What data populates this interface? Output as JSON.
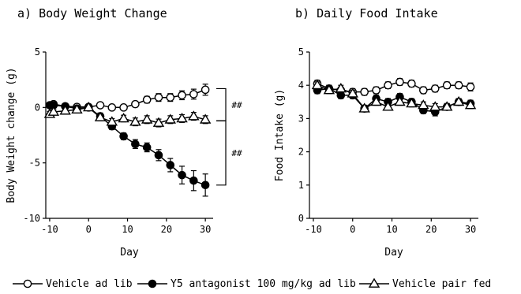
{
  "chart_data": [
    {
      "type": "line",
      "title": "a) Body Weight Change",
      "xlabel": "Day",
      "ylabel": "Body Weight change (g)",
      "xlim": [
        -11,
        32
      ],
      "ylim": [
        -10,
        5
      ],
      "xticks": [
        -10,
        0,
        10,
        20,
        30
      ],
      "yticks": [
        -10,
        -5,
        0,
        5
      ],
      "grid": false,
      "series": [
        {
          "name": "Vehicle ad lib",
          "marker": "open-circle",
          "points": [
            [
              -9,
              0.3
            ],
            [
              -6,
              0.1
            ],
            [
              -3,
              0.05
            ],
            [
              0,
              0.05
            ],
            [
              3,
              0.2
            ],
            [
              6,
              0.0
            ],
            [
              9,
              0.0
            ],
            [
              12,
              0.3
            ],
            [
              15,
              0.7
            ],
            [
              18,
              0.9
            ],
            [
              21,
              0.9
            ],
            [
              24,
              1.1
            ],
            [
              27,
              1.2
            ],
            [
              30,
              1.6
            ]
          ],
          "errors": [
            0.2,
            0.15,
            0.15,
            0.15,
            0.2,
            0.2,
            0.2,
            0.25,
            0.3,
            0.35,
            0.35,
            0.4,
            0.45,
            0.5
          ]
        },
        {
          "name": "Y5 antagonist 100 mg/kg ad lib",
          "marker": "filled-circle",
          "points": [
            [
              -10,
              0.2
            ],
            [
              -9,
              0.2
            ],
            [
              -6,
              0.1
            ],
            [
              -3,
              -0.1
            ],
            [
              0,
              0.0
            ],
            [
              3,
              -0.8
            ],
            [
              6,
              -1.7
            ],
            [
              9,
              -2.6
            ],
            [
              12,
              -3.3
            ],
            [
              15,
              -3.6
            ],
            [
              18,
              -4.3
            ],
            [
              21,
              -5.2
            ],
            [
              24,
              -6.1
            ],
            [
              27,
              -6.6
            ],
            [
              30,
              -7.0
            ]
          ],
          "errors": [
            0.2,
            0.2,
            0.2,
            0.2,
            0.2,
            0.3,
            0.3,
            0.3,
            0.4,
            0.4,
            0.5,
            0.6,
            0.8,
            0.9,
            1.0
          ]
        },
        {
          "name": "Vehicle pair fed",
          "marker": "open-triangle",
          "points": [
            [
              -10,
              -0.6
            ],
            [
              -9,
              -0.4
            ],
            [
              -6,
              -0.3
            ],
            [
              -3,
              -0.2
            ],
            [
              0,
              0.0
            ],
            [
              3,
              -0.9
            ],
            [
              6,
              -1.3
            ],
            [
              9,
              -1.0
            ],
            [
              12,
              -1.3
            ],
            [
              15,
              -1.1
            ],
            [
              18,
              -1.4
            ],
            [
              21,
              -1.1
            ],
            [
              24,
              -1.0
            ],
            [
              27,
              -0.8
            ],
            [
              30,
              -1.1
            ]
          ],
          "errors": [
            0.25,
            0.2,
            0.2,
            0.2,
            0.15,
            0.3,
            0.3,
            0.3,
            0.35,
            0.35,
            0.35,
            0.35,
            0.35,
            0.35,
            0.35
          ]
        }
      ],
      "annotations": [
        {
          "text": "##",
          "between": [
            1.7,
            -1.2
          ]
        },
        {
          "text": "##",
          "between": [
            -1.2,
            -7.0
          ]
        }
      ]
    },
    {
      "type": "line",
      "title": "b) Daily Food Intake",
      "xlabel": "Day",
      "ylabel": "Food Intake (g)",
      "xlim": [
        -11,
        32
      ],
      "ylim": [
        0,
        5
      ],
      "xticks": [
        -10,
        0,
        10,
        20,
        30
      ],
      "yticks": [
        0,
        1,
        2,
        3,
        4,
        5
      ],
      "grid": false,
      "series": [
        {
          "name": "Vehicle ad lib",
          "marker": "open-circle",
          "points": [
            [
              -9,
              4.05
            ],
            [
              -6,
              3.9
            ],
            [
              -3,
              3.85
            ],
            [
              0,
              3.8
            ],
            [
              3,
              3.8
            ],
            [
              6,
              3.85
            ],
            [
              9,
              4.0
            ],
            [
              12,
              4.1
            ],
            [
              15,
              4.05
            ],
            [
              18,
              3.85
            ],
            [
              21,
              3.9
            ],
            [
              24,
              4.0
            ],
            [
              27,
              4.0
            ],
            [
              30,
              3.95
            ]
          ],
          "errors": [
            0.1,
            0.1,
            0.1,
            0.1,
            0.1,
            0.1,
            0.1,
            0.1,
            0.1,
            0.1,
            0.1,
            0.1,
            0.1,
            0.12
          ]
        },
        {
          "name": "Y5 antagonist 100 mg/kg ad lib",
          "marker": "filled-circle",
          "points": [
            [
              -9,
              3.85
            ],
            [
              -6,
              3.9
            ],
            [
              -3,
              3.7
            ],
            [
              0,
              3.7
            ],
            [
              3,
              3.3
            ],
            [
              6,
              3.6
            ],
            [
              9,
              3.5
            ],
            [
              12,
              3.65
            ],
            [
              15,
              3.5
            ],
            [
              18,
              3.25
            ],
            [
              21,
              3.2
            ],
            [
              24,
              3.35
            ],
            [
              27,
              3.5
            ],
            [
              30,
              3.45
            ]
          ],
          "errors": [
            0.1,
            0.1,
            0.1,
            0.1,
            0.1,
            0.1,
            0.1,
            0.1,
            0.1,
            0.1,
            0.12,
            0.1,
            0.1,
            0.1
          ]
        },
        {
          "name": "Vehicle pair fed",
          "marker": "open-triangle",
          "points": [
            [
              -9,
              4.0
            ],
            [
              -6,
              3.85
            ],
            [
              -3,
              3.9
            ],
            [
              0,
              3.75
            ],
            [
              3,
              3.3
            ],
            [
              6,
              3.5
            ],
            [
              9,
              3.35
            ],
            [
              12,
              3.5
            ],
            [
              15,
              3.45
            ],
            [
              18,
              3.4
            ],
            [
              21,
              3.35
            ],
            [
              24,
              3.35
            ],
            [
              27,
              3.5
            ],
            [
              30,
              3.4
            ]
          ],
          "errors": [
            0.1,
            0.1,
            0.1,
            0.1,
            0.1,
            0.1,
            0.1,
            0.1,
            0.1,
            0.1,
            0.1,
            0.1,
            0.1,
            0.1
          ]
        }
      ]
    }
  ],
  "legend": {
    "placement": "bottom",
    "items": [
      {
        "label": "Vehicle ad lib",
        "marker": "open-circle"
      },
      {
        "label": "Y5 antagonist 100 mg/kg ad lib",
        "marker": "filled-circle"
      },
      {
        "label": "Vehicle pair fed",
        "marker": "open-triangle"
      }
    ]
  }
}
